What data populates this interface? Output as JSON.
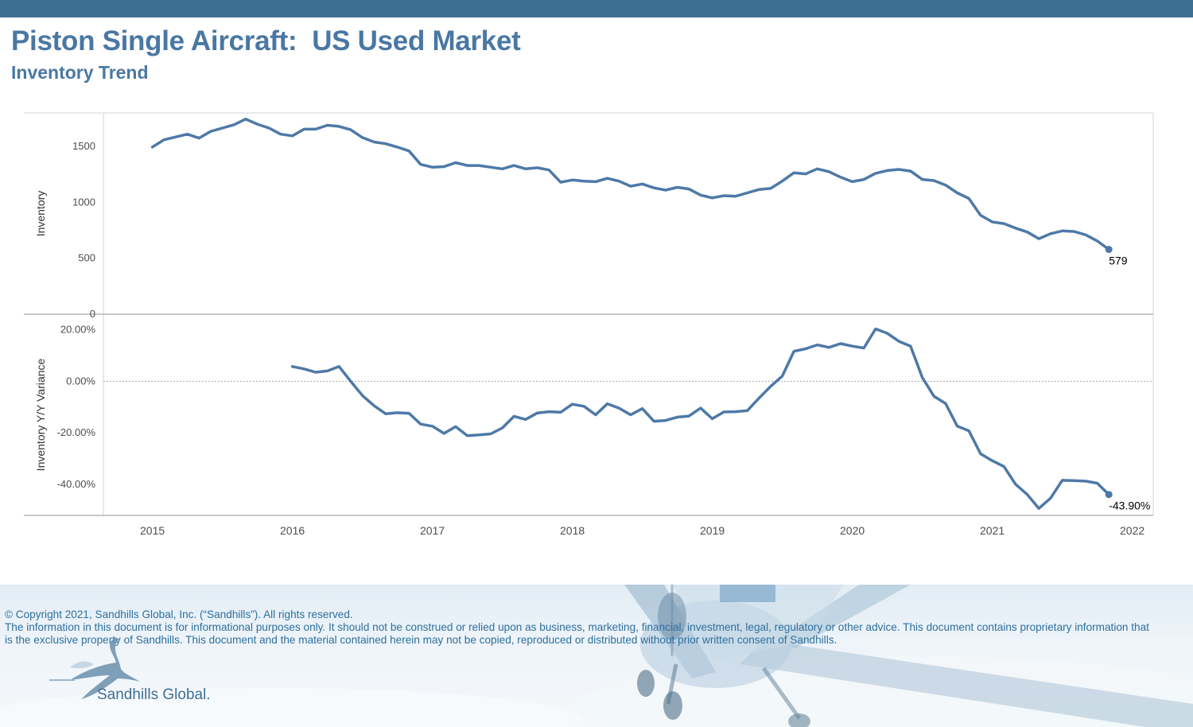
{
  "header": {
    "title": "Piston Single Aircraft:  US Used Market",
    "subtitle": "Inventory Trend"
  },
  "colors": {
    "accent": "#3e6f93",
    "title": "#4a77a3",
    "series": "#4e79a7",
    "legal_text": "#2e6f9e"
  },
  "chart_data": [
    {
      "type": "line",
      "ylabel": "Inventory",
      "ylim": [
        0,
        1800
      ],
      "yticks": [
        0,
        500,
        1000,
        1500
      ],
      "ytick_labels": [
        "0",
        "500",
        "1000",
        "1500"
      ],
      "xlim": [
        2014.65,
        2022.15
      ],
      "xticks": [
        2015,
        2016,
        2017,
        2018,
        2019,
        2020,
        2021,
        2022
      ],
      "xtick_labels": [
        "2015",
        "2016",
        "2017",
        "2018",
        "2019",
        "2020",
        "2021",
        "2022"
      ],
      "grid": false,
      "end_label": "579",
      "series": [
        {
          "x_start": 2015.0,
          "x_step": 0.08333,
          "values": [
            1495,
            1560,
            1585,
            1610,
            1575,
            1635,
            1665,
            1695,
            1745,
            1700,
            1665,
            1610,
            1595,
            1655,
            1655,
            1690,
            1680,
            1650,
            1580,
            1540,
            1525,
            1495,
            1460,
            1340,
            1315,
            1320,
            1355,
            1330,
            1330,
            1315,
            1300,
            1330,
            1300,
            1310,
            1290,
            1180,
            1200,
            1190,
            1185,
            1215,
            1190,
            1145,
            1165,
            1130,
            1110,
            1135,
            1120,
            1065,
            1040,
            1060,
            1055,
            1085,
            1115,
            1125,
            1190,
            1265,
            1255,
            1300,
            1275,
            1225,
            1185,
            1205,
            1260,
            1285,
            1295,
            1280,
            1205,
            1195,
            1155,
            1085,
            1035,
            885,
            825,
            810,
            770,
            735,
            675,
            720,
            745,
            740,
            710,
            655,
            579
          ]
        }
      ]
    },
    {
      "type": "line",
      "ylabel": "Inventory Y/Y Variance",
      "ylim": [
        -52,
        26
      ],
      "yticks": [
        -40,
        -20,
        0,
        20
      ],
      "ytick_labels": [
        "-40.00%",
        "-20.00%",
        "0.00%",
        "20.00%"
      ],
      "xlim": [
        2014.65,
        2022.15
      ],
      "xticks": [
        2015,
        2016,
        2017,
        2018,
        2019,
        2020,
        2021,
        2022
      ],
      "xtick_labels": [
        "2015",
        "2016",
        "2017",
        "2018",
        "2019",
        "2020",
        "2021",
        "2022"
      ],
      "zero_line": "dotted",
      "grid": false,
      "end_label": "-43.90%",
      "series": [
        {
          "x_start": 2016.0,
          "x_step": 0.08333,
          "values": [
            5.7,
            4.8,
            3.5,
            4.0,
            5.7,
            0.0,
            -5.5,
            -9.5,
            -12.6,
            -12.2,
            -12.4,
            -16.6,
            -17.4,
            -20.2,
            -17.6,
            -21.1,
            -20.8,
            -20.4,
            -18.1,
            -13.6,
            -14.8,
            -12.3,
            -11.8,
            -12.0,
            -8.9,
            -9.7,
            -13.0,
            -8.7,
            -10.4,
            -13.0,
            -10.6,
            -15.5,
            -15.2,
            -13.9,
            -13.5,
            -10.4,
            -14.5,
            -11.9,
            -11.8,
            -11.4,
            -6.6,
            -2.0,
            2.0,
            11.6,
            12.6,
            14.1,
            13.1,
            14.6,
            13.6,
            12.9,
            20.3,
            18.6,
            15.5,
            13.6,
            1.5,
            -5.8,
            -8.6,
            -17.4,
            -19.2,
            -28.1,
            -30.8,
            -33.0,
            -39.9,
            -43.9,
            -49.3,
            -45.3,
            -38.4,
            -38.5,
            -38.7,
            -39.5,
            -43.9
          ]
        }
      ]
    }
  ],
  "footer": {
    "copyright": "© Copyright 2021, Sandhills Global, Inc. (“Sandhills”). All rights reserved.",
    "disclaimer": "The information in this document is for informational purposes only.  It should not be construed or relied upon as business, marketing, financial, investment, legal, regulatory or other advice. This document contains proprietary information that is the exclusive property of Sandhills. This document and the material contained herein may not be copied, reproduced or distributed without prior written consent of Sandhills.",
    "brand": "Sandhills Global."
  }
}
